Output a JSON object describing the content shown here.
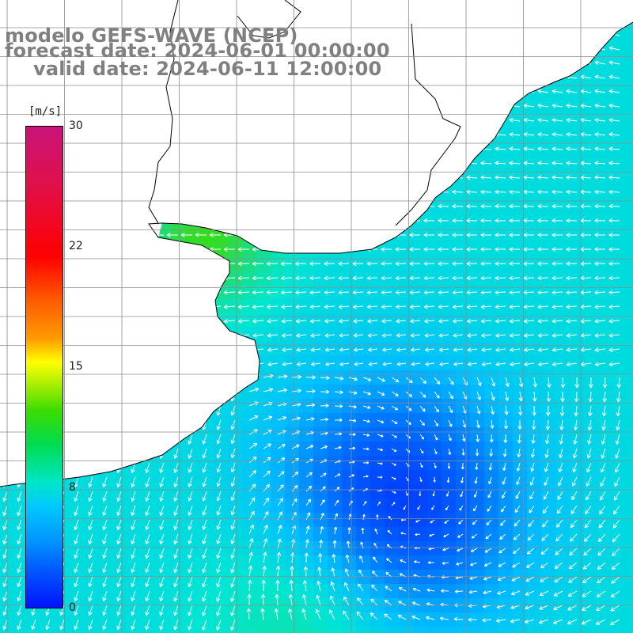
{
  "title": {
    "line1": "modelo GEFS-WAVE (NCEP)",
    "line2": "forecast date: 2024-06-01 00:00:00",
    "line3": "valid date: 2024-06-11 12:00:00"
  },
  "colorbar": {
    "unit": "[m/s]",
    "ticks": [
      "30",
      "22",
      "15",
      "8",
      "0"
    ],
    "colors": [
      "#c8127a",
      "#ff0000",
      "#ff9a00",
      "#ffff00",
      "#3cdc00",
      "#00e6c8",
      "#00c8ff",
      "#0050ff",
      "#0014ff"
    ]
  },
  "map": {
    "land_color": "#ffffff",
    "coastline_color": "#000000",
    "grid_color": "#8c8c8c",
    "arrow_color": "#ffffff"
  }
}
